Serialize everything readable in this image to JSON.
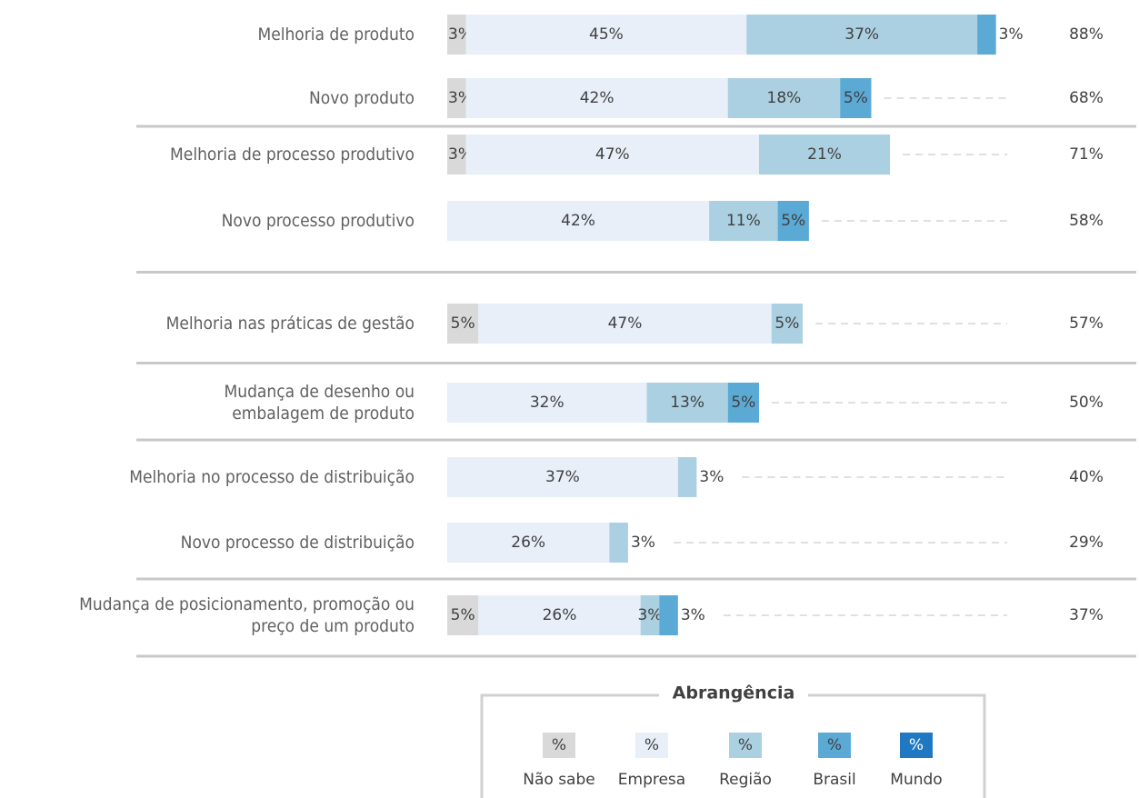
{
  "chart_data": {
    "type": "stacked-bar-horizontal",
    "categories": [
      "Melhoria de produto",
      "Novo produto",
      "Melhoria de processo produtivo",
      "Novo processo produtivo",
      "Melhoria nas práticas de gestão",
      "Mudança de desenho ou\nembalagem de produto",
      "Melhoria no processo de distribuição",
      "Novo processo de distribuição",
      "Mudança de posicionamento, promoção ou\npreço de um produto"
    ],
    "series": [
      {
        "name": "Não sabe",
        "color": "#d9d9d9",
        "values": [
          3,
          3,
          3,
          null,
          5,
          null,
          null,
          null,
          5
        ],
        "value_labels": [
          "3%",
          "3%",
          "3%",
          null,
          "5%",
          null,
          null,
          null,
          "5%"
        ]
      },
      {
        "name": "Empresa",
        "color": "#e8eff9",
        "values": [
          45,
          42,
          47,
          42,
          47,
          32,
          37,
          26,
          26
        ],
        "value_labels": [
          "45%",
          "42%",
          "47%",
          "42%",
          "47%",
          "32%",
          "37%",
          "26%",
          "26%"
        ]
      },
      {
        "name": "Região",
        "color": "#abd0e2",
        "values": [
          37,
          18,
          21,
          11,
          5,
          13,
          3,
          3,
          3
        ],
        "value_labels": [
          "37%",
          "18%",
          "21%",
          "11%",
          "5%",
          "13%",
          "3%",
          "3%",
          "3%"
        ]
      },
      {
        "name": "Brasil",
        "color": "#5ba9d5",
        "values": [
          3,
          5,
          null,
          5,
          null,
          5,
          null,
          null,
          3
        ],
        "value_labels": [
          "3%",
          "5%",
          null,
          "5%",
          null,
          "5%",
          null,
          null,
          "3%"
        ]
      },
      {
        "name": "Mundo",
        "color": "#1f78c1",
        "values": [
          null,
          null,
          null,
          null,
          null,
          null,
          null,
          null,
          null
        ]
      }
    ],
    "totals": [
      88,
      68,
      71,
      58,
      57,
      50,
      40,
      29,
      37
    ],
    "total_labels": [
      "88%",
      "68%",
      "71%",
      "58%",
      "57%",
      "50%",
      "40%",
      "29%",
      "37%"
    ],
    "legend": {
      "title": "Abrangência",
      "symbol": "%"
    }
  }
}
